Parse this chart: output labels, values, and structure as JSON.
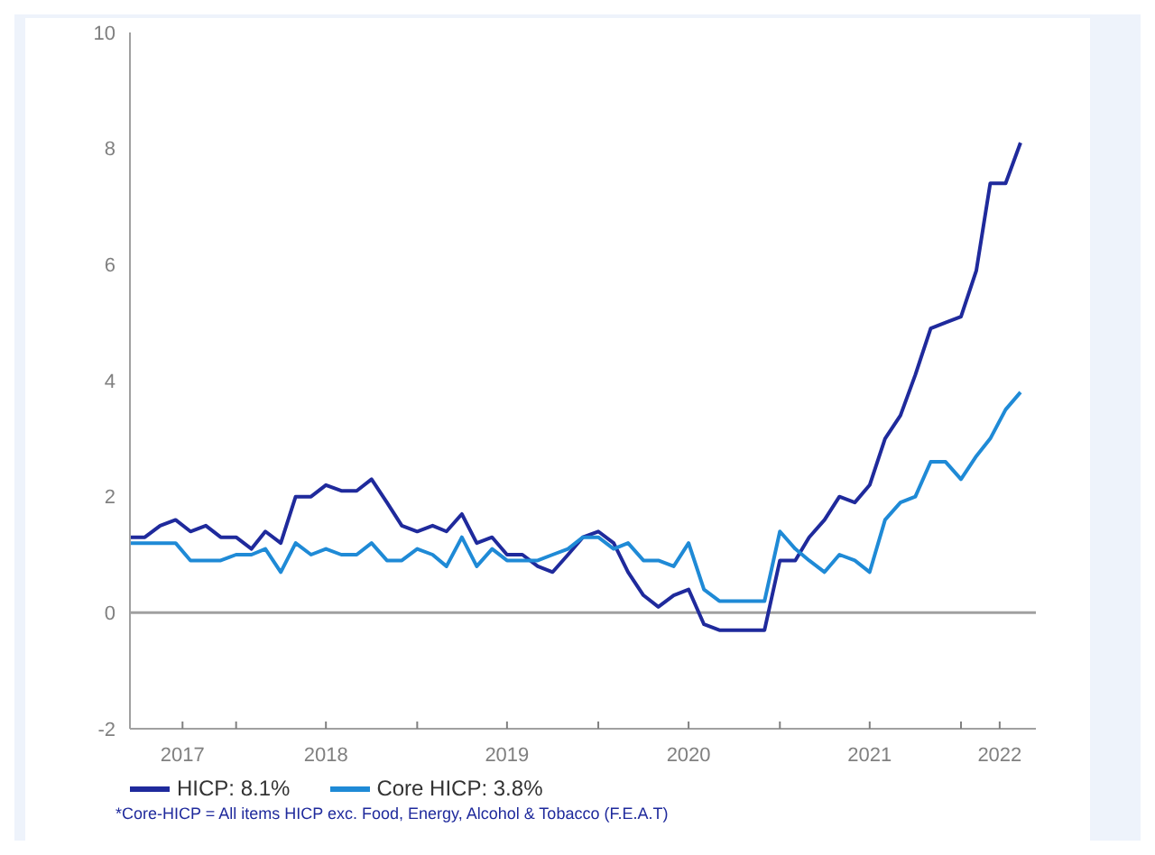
{
  "chart_data": {
    "type": "line",
    "x": [
      "2017-06",
      "2017-07",
      "2017-08",
      "2017-09",
      "2017-10",
      "2017-11",
      "2017-12",
      "2018-01",
      "2018-02",
      "2018-03",
      "2018-04",
      "2018-05",
      "2018-06",
      "2018-07",
      "2018-08",
      "2018-09",
      "2018-10",
      "2018-11",
      "2018-12",
      "2019-01",
      "2019-02",
      "2019-03",
      "2019-04",
      "2019-05",
      "2019-06",
      "2019-07",
      "2019-08",
      "2019-09",
      "2019-10",
      "2019-11",
      "2019-12",
      "2020-01",
      "2020-02",
      "2020-03",
      "2020-04",
      "2020-05",
      "2020-06",
      "2020-07",
      "2020-08",
      "2020-09",
      "2020-10",
      "2020-11",
      "2020-12",
      "2021-01",
      "2021-02",
      "2021-03",
      "2021-04",
      "2021-05",
      "2021-06",
      "2021-07",
      "2021-08",
      "2021-09",
      "2021-10",
      "2021-11",
      "2021-12",
      "2022-01",
      "2022-02",
      "2022-03",
      "2022-04",
      "2022-05"
    ],
    "series": [
      {
        "name": "HICP: 8.1%",
        "color": "#1f2a9c",
        "values": [
          1.3,
          1.3,
          1.5,
          1.6,
          1.4,
          1.5,
          1.3,
          1.3,
          1.1,
          1.4,
          1.2,
          2.0,
          2.0,
          2.2,
          2.1,
          2.1,
          2.3,
          1.9,
          1.5,
          1.4,
          1.5,
          1.4,
          1.7,
          1.2,
          1.3,
          1.0,
          1.0,
          0.8,
          0.7,
          1.0,
          1.3,
          1.4,
          1.2,
          0.7,
          0.3,
          0.1,
          0.3,
          0.4,
          -0.2,
          -0.3,
          -0.3,
          -0.3,
          -0.3,
          0.9,
          0.9,
          1.3,
          1.6,
          2.0,
          1.9,
          2.2,
          3.0,
          3.4,
          4.1,
          4.9,
          5.0,
          5.1,
          5.9,
          7.4,
          7.4,
          8.1
        ]
      },
      {
        "name": "Core HICP: 3.8%",
        "color": "#1f8ad6",
        "values": [
          1.2,
          1.2,
          1.2,
          1.2,
          0.9,
          0.9,
          0.9,
          1.0,
          1.0,
          1.1,
          0.7,
          1.2,
          1.0,
          1.1,
          1.0,
          1.0,
          1.2,
          0.9,
          0.9,
          1.1,
          1.0,
          0.8,
          1.3,
          0.8,
          1.1,
          0.9,
          0.9,
          0.9,
          1.0,
          1.1,
          1.3,
          1.3,
          1.1,
          1.2,
          0.9,
          0.9,
          0.8,
          1.2,
          0.4,
          0.2,
          0.2,
          0.2,
          0.2,
          1.4,
          1.1,
          0.9,
          0.7,
          1.0,
          0.9,
          0.7,
          1.6,
          1.9,
          2.0,
          2.6,
          2.6,
          2.3,
          2.7,
          3.0,
          3.5,
          3.8
        ]
      }
    ],
    "xlim": [
      "2017-06",
      "2022-06"
    ],
    "xticks": [
      {
        "value": "2017-09-15",
        "label": "2017"
      },
      {
        "value": "2018-01",
        "label": null
      },
      {
        "value": "2018-07",
        "label": "2018"
      },
      {
        "value": "2019-01",
        "label": null
      },
      {
        "value": "2019-07",
        "label": "2019"
      },
      {
        "value": "2020-01",
        "label": null
      },
      {
        "value": "2020-07",
        "label": "2020"
      },
      {
        "value": "2021-01",
        "label": null
      },
      {
        "value": "2021-07",
        "label": "2021"
      },
      {
        "value": "2022-01",
        "label": null
      },
      {
        "value": "2022-03-20",
        "label": "2022"
      }
    ],
    "ylim": [
      -2,
      10
    ],
    "yticks": [
      -2,
      0,
      2,
      4,
      6,
      8,
      10
    ],
    "ref_lines": [
      {
        "axis": "y",
        "value": 0,
        "color": "#a0a0a0"
      }
    ],
    "grid": false,
    "legend": "bottom",
    "marker": "none",
    "line_style": "solid",
    "annotations": [
      "*Core-HICP = All items HICP exc. Food, Energy, Alcohol & Tobacco (F.E.A.T)"
    ]
  }
}
